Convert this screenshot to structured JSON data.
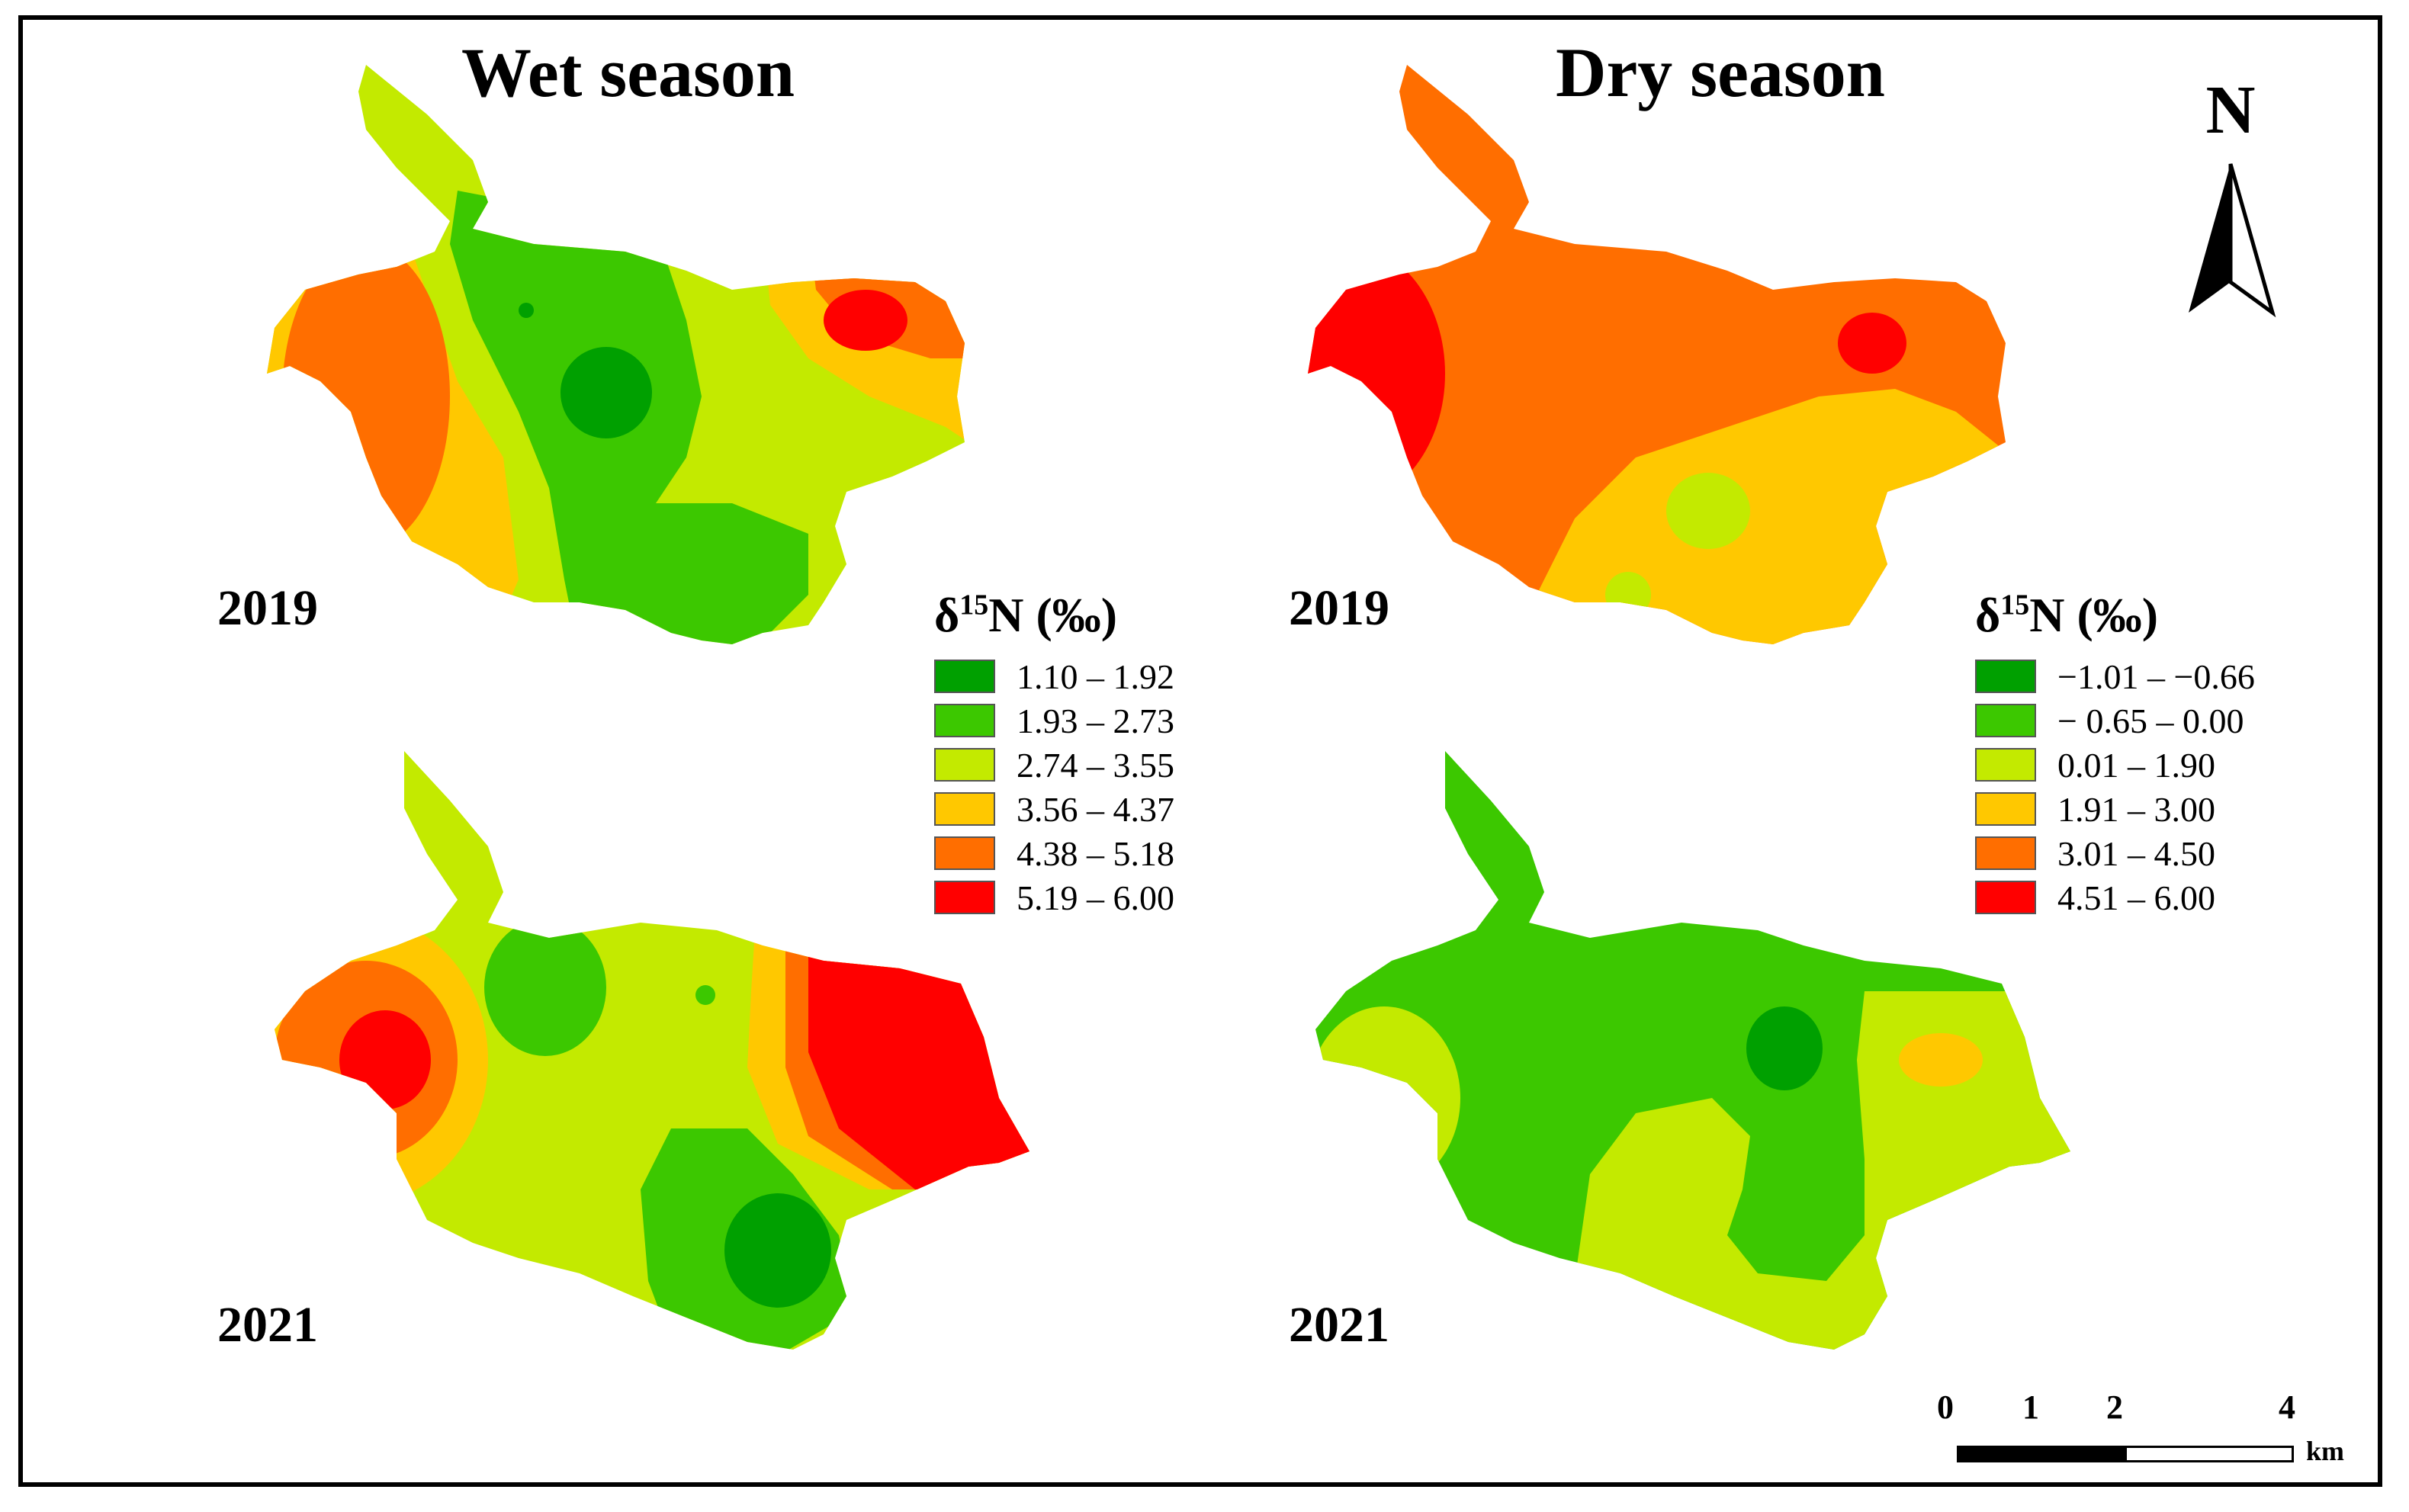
{
  "titles": {
    "wet": "Wet season",
    "dry": "Dry season"
  },
  "years": {
    "wet_2019": "2019",
    "wet_2021": "2021",
    "dry_2019": "2019",
    "dry_2021": "2021"
  },
  "legend_wet": {
    "title": "δ15N (‰)",
    "title_parts": {
      "delta": "δ",
      "sup": "15",
      "rest": "N (‰)"
    },
    "items": [
      {
        "label": "1.10 – 1.92",
        "color": "#00a000"
      },
      {
        "label": "1.93 – 2.73",
        "color": "#3cc800"
      },
      {
        "label": "2.74 – 3.55",
        "color": "#c3ea00"
      },
      {
        "label": "3.56 – 4.37",
        "color": "#ffc800"
      },
      {
        "label": "4.38 – 5.18",
        "color": "#ff6e00"
      },
      {
        "label": "5.19 – 6.00",
        "color": "#ff0000"
      }
    ]
  },
  "legend_dry": {
    "title": "δ15N (‰)",
    "title_parts": {
      "delta": "δ",
      "sup": "15",
      "rest": "N (‰)"
    },
    "items": [
      {
        "label": "−1.01 – −0.66",
        "color": "#00a000"
      },
      {
        "label": "− 0.65 – 0.00",
        "color": "#3cc800"
      },
      {
        "label": "0.01 – 1.90",
        "color": "#c3ea00"
      },
      {
        "label": "1.91 – 3.00",
        "color": "#ffc800"
      },
      {
        "label": "3.01 – 4.50",
        "color": "#ff6e00"
      },
      {
        "label": "4.51 – 6.00",
        "color": "#ff0000"
      }
    ]
  },
  "north_arrow": {
    "label": "N"
  },
  "scale_bar": {
    "ticks": [
      "0",
      "1",
      "2",
      "4"
    ],
    "unit": "km"
  },
  "colors": {
    "c1": "#00a000",
    "c2": "#3cc800",
    "c3": "#c3ea00",
    "c4": "#ffc800",
    "c5": "#ff6e00",
    "c6": "#ff0000"
  }
}
